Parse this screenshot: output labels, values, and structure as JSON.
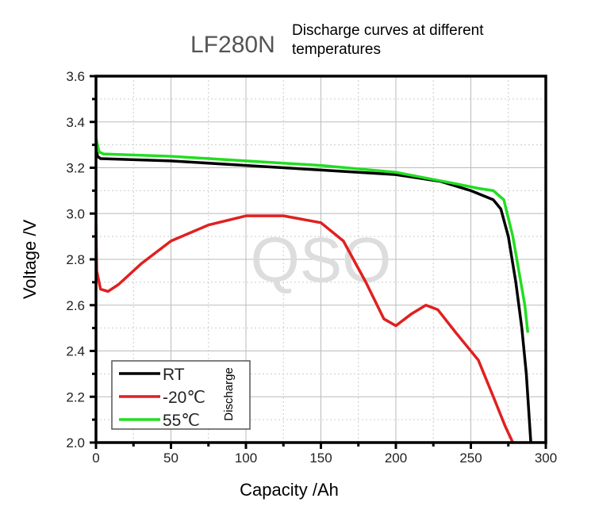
{
  "chart_data": {
    "type": "line",
    "title": "LF280N",
    "subtitle": "Discharge curves at different temperatures",
    "xlabel": "Capacity /Ah",
    "ylabel": "Voltage /V",
    "xlim": [
      0,
      300
    ],
    "ylim": [
      2.0,
      3.6
    ],
    "xticks": [
      "0",
      "50",
      "100",
      "150",
      "200",
      "250",
      "300"
    ],
    "yticks": [
      "2.0",
      "2.2",
      "2.4",
      "2.6",
      "2.8",
      "3.0",
      "3.2",
      "3.4",
      "3.6"
    ],
    "grid": true,
    "legend": {
      "placement": "bottom-left",
      "title": "Discharge"
    },
    "watermark": "QSO",
    "series": [
      {
        "name": "RT",
        "color": "#000000",
        "points": [
          [
            0,
            3.3
          ],
          [
            1,
            3.25
          ],
          [
            3,
            3.24
          ],
          [
            50,
            3.23
          ],
          [
            100,
            3.21
          ],
          [
            150,
            3.19
          ],
          [
            200,
            3.17
          ],
          [
            230,
            3.14
          ],
          [
            250,
            3.1
          ],
          [
            265,
            3.06
          ],
          [
            270,
            3.02
          ],
          [
            275,
            2.9
          ],
          [
            280,
            2.7
          ],
          [
            284,
            2.5
          ],
          [
            287,
            2.3
          ],
          [
            289,
            2.1
          ],
          [
            290,
            2.0
          ]
        ]
      },
      {
        "name": "-20℃",
        "color": "#e02020",
        "points": [
          [
            0,
            2.95
          ],
          [
            0.5,
            2.75
          ],
          [
            3,
            2.67
          ],
          [
            8,
            2.66
          ],
          [
            15,
            2.69
          ],
          [
            30,
            2.78
          ],
          [
            50,
            2.88
          ],
          [
            75,
            2.95
          ],
          [
            100,
            2.99
          ],
          [
            125,
            2.99
          ],
          [
            150,
            2.96
          ],
          [
            165,
            2.88
          ],
          [
            180,
            2.7
          ],
          [
            192,
            2.54
          ],
          [
            200,
            2.51
          ],
          [
            210,
            2.56
          ],
          [
            220,
            2.6
          ],
          [
            228,
            2.58
          ],
          [
            240,
            2.48
          ],
          [
            255,
            2.36
          ],
          [
            265,
            2.2
          ],
          [
            273,
            2.07
          ],
          [
            278,
            2.0
          ]
        ]
      },
      {
        "name": "55℃",
        "color": "#22dd22",
        "points": [
          [
            0,
            3.33
          ],
          [
            2,
            3.27
          ],
          [
            5,
            3.26
          ],
          [
            50,
            3.25
          ],
          [
            100,
            3.23
          ],
          [
            150,
            3.21
          ],
          [
            200,
            3.18
          ],
          [
            240,
            3.13
          ],
          [
            255,
            3.11
          ],
          [
            265,
            3.1
          ],
          [
            272,
            3.06
          ],
          [
            278,
            2.9
          ],
          [
            282,
            2.75
          ],
          [
            286,
            2.6
          ],
          [
            288,
            2.48
          ]
        ]
      }
    ]
  }
}
